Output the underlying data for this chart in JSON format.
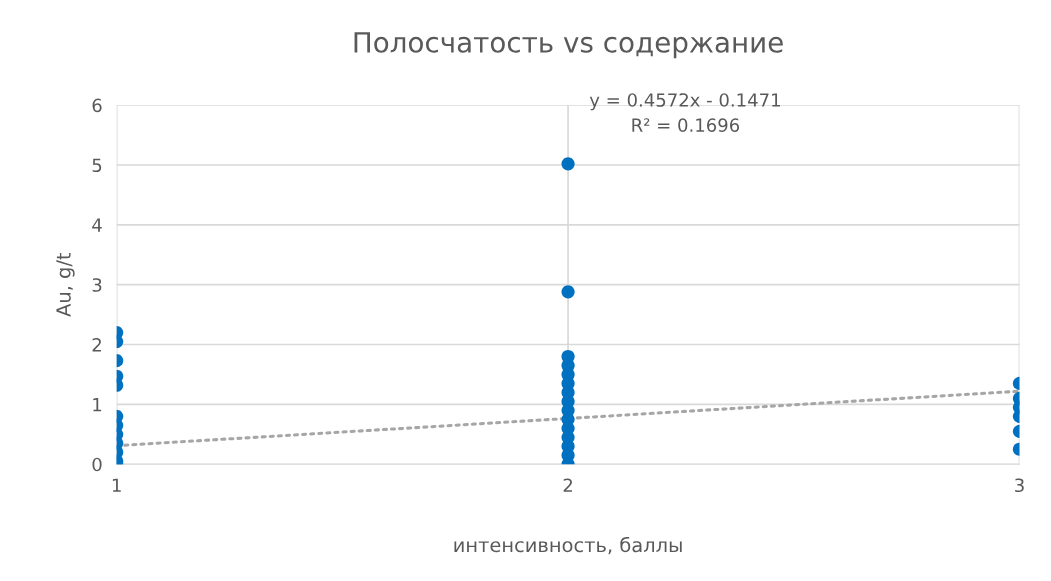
{
  "chart_data": {
    "type": "scatter",
    "title": "Полосчатость vs содержание",
    "xlabel": "интенсивность, баллы",
    "ylabel": "Au, g/t",
    "xlim": [
      1,
      3
    ],
    "xticks": [
      1,
      2,
      3
    ],
    "ylim": [
      0,
      6
    ],
    "yticks": [
      0,
      1,
      2,
      3,
      4,
      5,
      6
    ],
    "grid": true,
    "series": [
      {
        "marker": "circle",
        "color": "#0070c0",
        "x": [
          1,
          1,
          1,
          1,
          1,
          1,
          1,
          1,
          1,
          1,
          1,
          1,
          2,
          2,
          2,
          2,
          2,
          2,
          2,
          2,
          2,
          2,
          2,
          2,
          2,
          2,
          2,
          3,
          3,
          3,
          3,
          3,
          3
        ],
        "values": [
          2.2,
          2.05,
          1.73,
          1.47,
          1.32,
          0.8,
          0.65,
          0.5,
          0.35,
          0.2,
          0.05,
          0.0,
          5.02,
          2.88,
          1.8,
          1.65,
          1.5,
          1.35,
          1.2,
          1.05,
          0.9,
          0.75,
          0.6,
          0.45,
          0.3,
          0.15,
          0.0,
          1.35,
          1.1,
          0.95,
          0.8,
          0.55,
          0.25
        ]
      },
      {
        "type": "line",
        "color": "#a6a6a6",
        "line_style": "dotted",
        "marker": "none",
        "x": [
          1,
          3
        ],
        "values": [
          0.31,
          1.22
        ]
      }
    ],
    "annotations": [
      "y = 0.4572x - 0.1471",
      "R² = 0.1696"
    ]
  }
}
